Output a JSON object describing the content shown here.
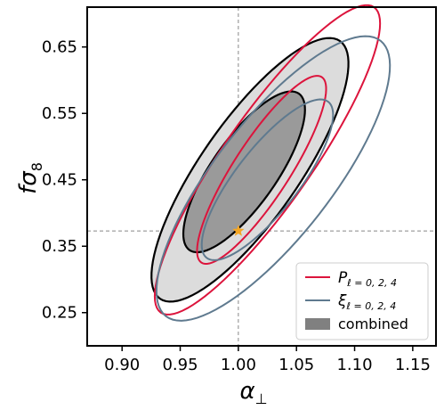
{
  "chart_data": {
    "type": "contour",
    "xlabel": "α⊥",
    "ylabel": "fσ8",
    "xlim": [
      0.87,
      1.17
    ],
    "ylim": [
      0.2,
      0.71
    ],
    "xticks": [
      0.9,
      0.95,
      1.0,
      1.05,
      1.1,
      1.15
    ],
    "yticks": [
      0.25,
      0.35,
      0.45,
      0.55,
      0.65
    ],
    "reference_lines": {
      "x": 1.0,
      "y": 0.373
    },
    "fiducial_point": {
      "x": 1.0,
      "y": 0.373,
      "marker": "star",
      "color": "#f5a623"
    },
    "legend_position": "lower-right",
    "series": [
      {
        "name": "P_{ℓ=0,2,4}",
        "legend_symbol": "P",
        "legend_subscript": "ℓ = 0, 2, 4",
        "style": "line",
        "color": "#dc143c",
        "contours": [
          {
            "level": "68%",
            "center": [
              1.02,
              0.465
            ],
            "semi_major": 0.095,
            "semi_minor": 0.024,
            "angle_deg": 57
          },
          {
            "level": "95%",
            "center": [
              1.025,
              0.48
            ],
            "semi_major": 0.16,
            "semi_minor": 0.038,
            "angle_deg": 55
          }
        ]
      },
      {
        "name": "ξ_{ℓ=0,2,4}",
        "legend_symbol": "ξ",
        "legend_subscript": "ℓ = 0, 2, 4",
        "style": "line",
        "color": "#5f7a8f",
        "contours": [
          {
            "level": "68%",
            "center": [
              1.025,
              0.45
            ],
            "semi_major": 0.085,
            "semi_minor": 0.027,
            "angle_deg": 52
          },
          {
            "level": "95%",
            "center": [
              1.03,
              0.452
            ],
            "semi_major": 0.15,
            "semi_minor": 0.05,
            "angle_deg": 52
          }
        ]
      },
      {
        "name": "combined",
        "style": "filled",
        "color": "#808080",
        "contours": [
          {
            "level": "68%",
            "center": [
              1.005,
              0.462
            ],
            "semi_major": 0.082,
            "semi_minor": 0.028,
            "angle_deg": 55
          },
          {
            "level": "95%",
            "center": [
              1.01,
              0.465
            ],
            "semi_major": 0.135,
            "semi_minor": 0.042,
            "angle_deg": 55
          }
        ]
      }
    ]
  }
}
